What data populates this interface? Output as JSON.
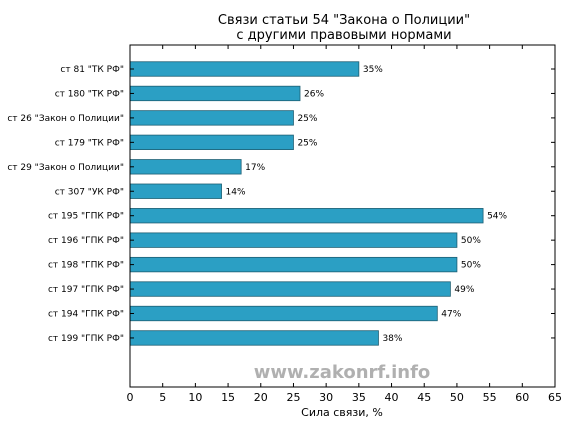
{
  "chart_data": {
    "type": "bar",
    "orientation": "horizontal",
    "title_line1": "Связи статьи 54 \"Закона о Полиции\"",
    "title_line2": "с другими правовыми нормами",
    "xlabel": "Сила связи, %",
    "ylabel": "",
    "xlim": [
      0,
      65
    ],
    "xticks": [
      0,
      5,
      10,
      15,
      20,
      25,
      30,
      35,
      40,
      45,
      50,
      55,
      60,
      65
    ],
    "grid": false,
    "bar_color": "#2b9fc4",
    "bar_edge_color": "#1d5f73",
    "categories": [
      "ст 81 \"ТК РФ\"",
      "ст 180 \"ТК РФ\"",
      "ст 26 \"Закон о Полиции\"",
      "ст 179 \"ТК РФ\"",
      "ст 29 \"Закон о Полиции\"",
      "ст 307 \"УК РФ\"",
      "ст 195 \"ГПК РФ\"",
      "ст 196 \"ГПК РФ\"",
      "ст 198 \"ГПК РФ\"",
      "ст 197 \"ГПК РФ\"",
      "ст 194 \"ГПК РФ\"",
      "ст 199 \"ГПК РФ\""
    ],
    "values": [
      35,
      26,
      25,
      25,
      17,
      14,
      54,
      50,
      50,
      49,
      47,
      38
    ],
    "value_labels": [
      "35%",
      "26%",
      "25%",
      "25%",
      "17%",
      "14%",
      "54%",
      "50%",
      "50%",
      "49%",
      "47%",
      "38%"
    ]
  },
  "watermark": "www.zakonrf.info"
}
